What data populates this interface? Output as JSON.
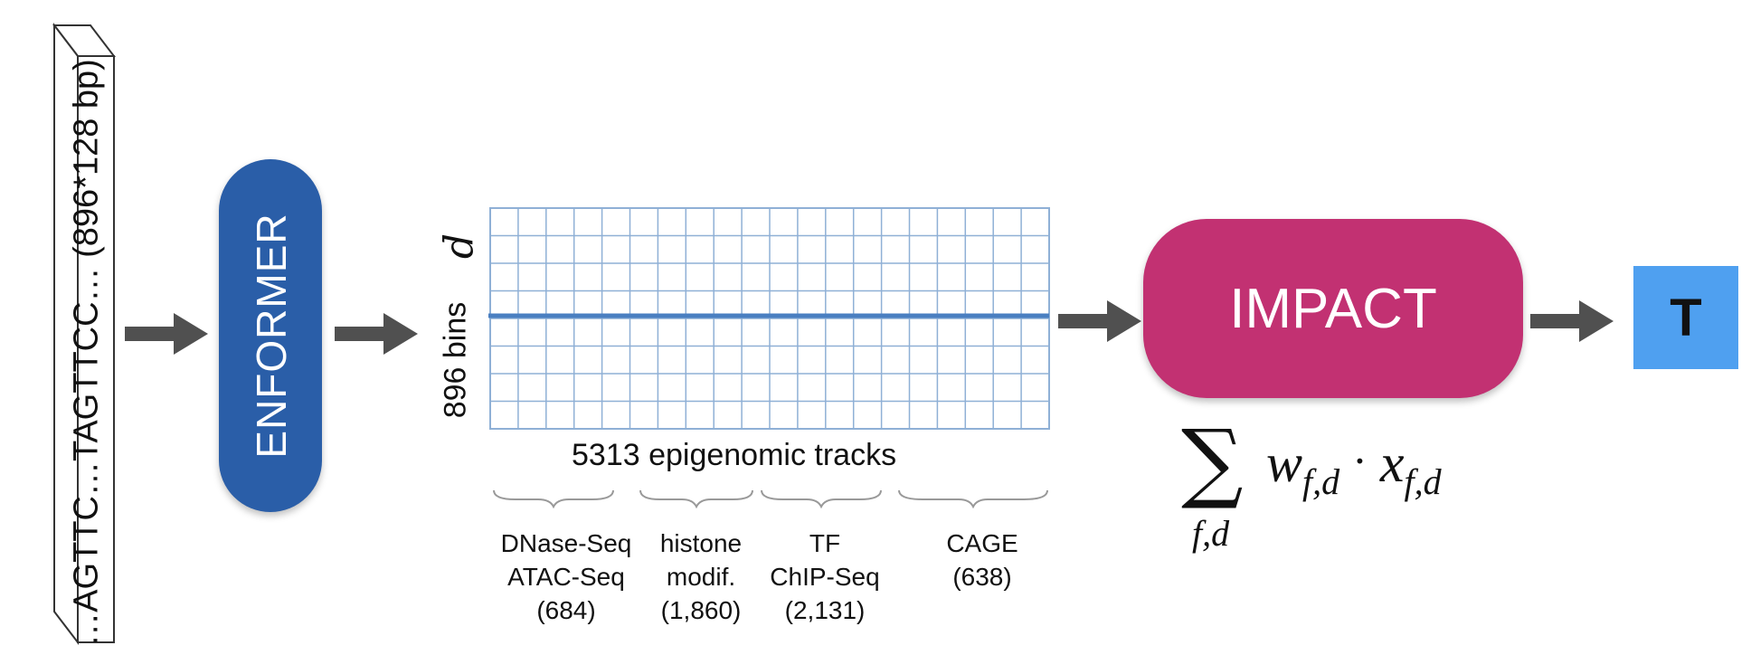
{
  "input_sequence": {
    "text": "…AGTTC…TAGTTCC… (896*128 bp)"
  },
  "enformer": {
    "label": "ENFORMER",
    "color": "#2a5ea8"
  },
  "matrix": {
    "row_label": "896 bins",
    "row_symbol": "d",
    "column_label": "5313 epigenomic tracks",
    "grid_color": "#8fb0d6",
    "highlight_color": "#4a7fc1"
  },
  "track_categories": [
    {
      "text": "DNase-Seq\nATAC-Seq\n(684)"
    },
    {
      "text": "histone\nmodif.\n(1,860)"
    },
    {
      "text": "TF\nChIP-Seq\n(2,131)"
    },
    {
      "text": "CAGE\n(638)"
    }
  ],
  "impact": {
    "label": "IMPACT",
    "color": "#c23172"
  },
  "formula": {
    "sigma": "∑",
    "sum_index": "f,d",
    "weight": "w",
    "weight_sub": "f,d",
    "dot": "·",
    "feature": "x",
    "feature_sub": "f,d"
  },
  "output": {
    "label": "T",
    "color": "#4fa0f0"
  },
  "arrow_color": "#505050"
}
